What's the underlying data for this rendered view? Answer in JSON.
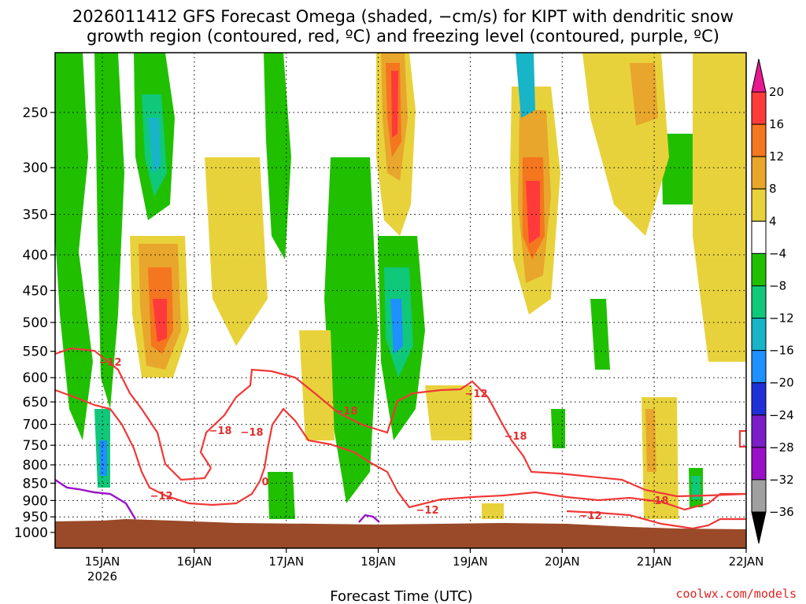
{
  "title_line1": "2026011412 GFS Forecast Omega (shaded, −cm/s) for KIPT with dendritic snow",
  "title_line2": "growth region (contoured, red, ºC) and freezing level (contoured, purple, ºC)",
  "credit": "coolwx.com/models",
  "chart_data": {
    "type": "heatmap",
    "xlabel": "Forecast Time (UTC)",
    "ylabel": "",
    "x_ticks": [
      {
        "label": "15JAN",
        "sub": "2026",
        "day": 15
      },
      {
        "label": "16JAN",
        "sub": "",
        "day": 16
      },
      {
        "label": "17JAN",
        "sub": "",
        "day": 17
      },
      {
        "label": "18JAN",
        "sub": "",
        "day": 18
      },
      {
        "label": "19JAN",
        "sub": "",
        "day": 19
      },
      {
        "label": "20JAN",
        "sub": "",
        "day": 20
      },
      {
        "label": "21JAN",
        "sub": "",
        "day": 21
      },
      {
        "label": "22JAN",
        "sub": "",
        "day": 22
      }
    ],
    "y_ticks": [
      250,
      300,
      350,
      400,
      450,
      500,
      550,
      600,
      650,
      700,
      750,
      800,
      850,
      900,
      950,
      1000
    ],
    "y_scale": "log-pressure, inverted",
    "colorbar": {
      "labels": [
        "20",
        "16",
        "12",
        "8",
        "4",
        "−4",
        "−8",
        "−12",
        "−16",
        "−20",
        "−24",
        "−28",
        "−32",
        "−36"
      ],
      "colors": [
        "#ff3a3a",
        "#f4761e",
        "#e8a62c",
        "#e8d23c",
        "#ffffff",
        "#20c000",
        "#10c87a",
        "#18b4c8",
        "#1e90ff",
        "#2030d8",
        "#7a1ec8",
        "#9a10c8",
        "#a0a0a0"
      ],
      "top_arrow_color": "#e81890",
      "bottom_arrow_color": "#000000"
    },
    "contour_labels": [
      {
        "text": "−12",
        "color": "red"
      },
      {
        "text": "−18",
        "color": "red"
      },
      {
        "text": "−18",
        "color": "red"
      },
      {
        "text": "−12",
        "color": "red"
      },
      {
        "text": "−18",
        "color": "red"
      },
      {
        "text": "−12",
        "color": "red"
      },
      {
        "text": "−12",
        "color": "red"
      },
      {
        "text": "−18",
        "color": "red"
      },
      {
        "text": "−12",
        "color": "red"
      },
      {
        "text": "−18",
        "color": "red"
      },
      {
        "text": "0",
        "color": "red"
      }
    ],
    "grid": true,
    "ground_color": "#9a4a28"
  }
}
